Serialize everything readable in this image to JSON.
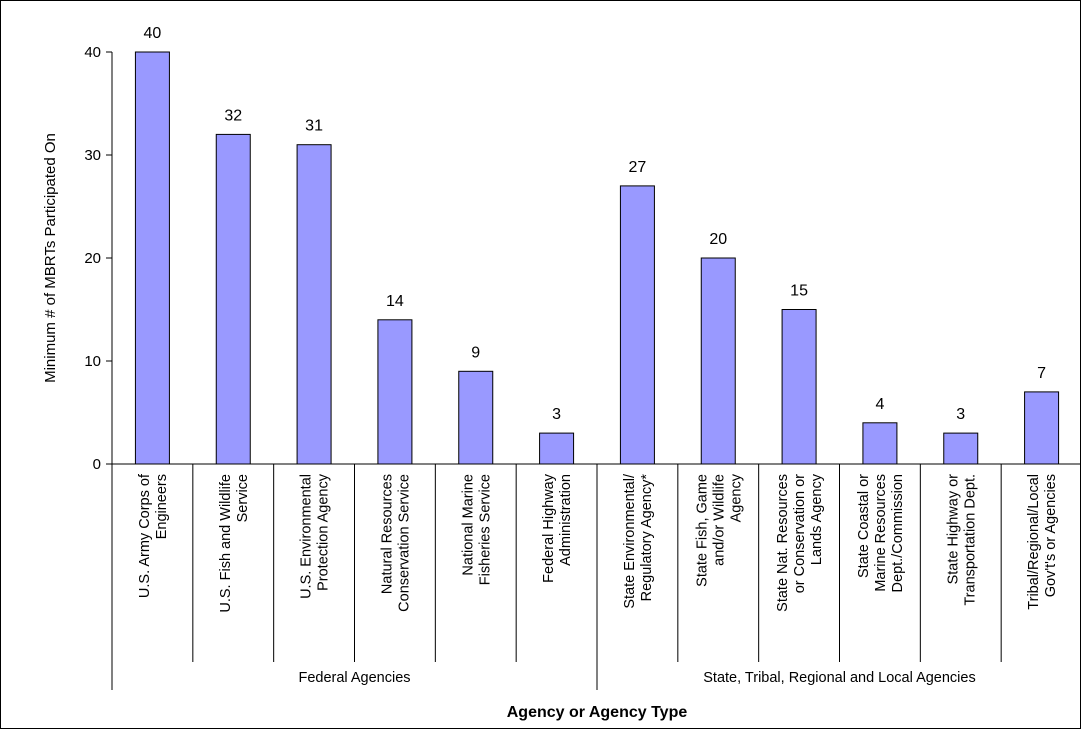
{
  "chart_data": {
    "type": "bar",
    "ylabel": "Minimum # of MBRTs Participated On",
    "xlabel": "Agency or Agency Type",
    "ylim": [
      0,
      40
    ],
    "yticks": [
      0,
      10,
      20,
      30,
      40
    ],
    "grid": false,
    "legend": "none",
    "bar_color": "#9999ff",
    "categories": [
      [
        "U.S. Army Corps of",
        "Engineers"
      ],
      [
        "U.S. Fish and Wildlife",
        "Service"
      ],
      [
        "U.S. Environmental",
        "Protection Agency"
      ],
      [
        "Natural Resources",
        "Conservation Service"
      ],
      [
        "National Marine",
        "Fisheries Service"
      ],
      [
        "Federal Highway",
        "Administration"
      ],
      [
        "State Environmental/",
        "Regulatory Agency*"
      ],
      [
        "State Fish, Game",
        "and/or Wildlife",
        "Agency"
      ],
      [
        "State Nat. Resources",
        "or Conservation or",
        "Lands Agency"
      ],
      [
        "State Coastal or",
        "Marine Resources",
        "Dept./Commission"
      ],
      [
        "State Highway or",
        "Transportation Dept."
      ],
      [
        "Tribal/Regional/Local",
        "Gov't's or Agencies"
      ]
    ],
    "values": [
      40,
      32,
      31,
      14,
      9,
      3,
      27,
      20,
      15,
      4,
      3,
      7
    ],
    "groups": [
      {
        "label": "Federal Agencies",
        "start": 0,
        "end": 5
      },
      {
        "label": "State, Tribal, Regional and Local Agencies",
        "start": 6,
        "end": 11
      }
    ]
  }
}
